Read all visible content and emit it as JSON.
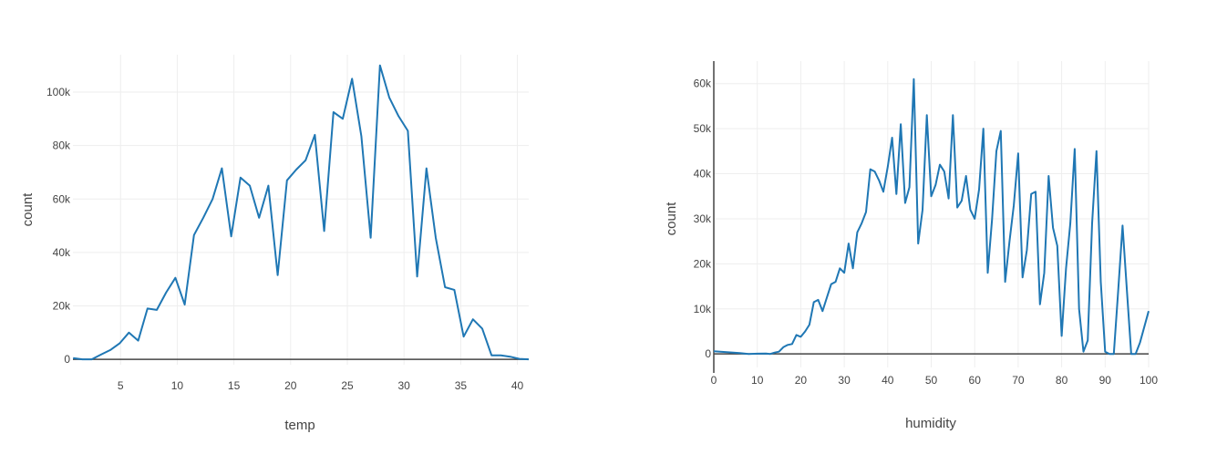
{
  "colors": {
    "line": "#1f77b4",
    "grid": "#eeeeee",
    "zeroline": "#444444",
    "text": "#444444"
  },
  "chart_data": [
    {
      "type": "line",
      "xlabel": "temp",
      "ylabel": "count",
      "xlim": [
        0.8,
        41
      ],
      "ylim": [
        -2000,
        114000
      ],
      "grid": true,
      "x_ticks": [
        5,
        10,
        15,
        20,
        25,
        30,
        35,
        40
      ],
      "x_tick_labels": [
        "5",
        "10",
        "15",
        "20",
        "25",
        "30",
        "35",
        "40"
      ],
      "y_ticks": [
        0,
        20000,
        40000,
        60000,
        80000,
        100000
      ],
      "y_tick_labels": [
        "0",
        "20k",
        "40k",
        "60k",
        "80k",
        "100k"
      ],
      "series": [
        {
          "x": [
            0.82,
            1.64,
            2.46,
            3.28,
            4.1,
            4.92,
            5.74,
            6.56,
            7.38,
            8.2,
            9.02,
            9.84,
            10.66,
            11.48,
            12.3,
            13.12,
            13.94,
            14.76,
            15.58,
            16.4,
            17.22,
            18.04,
            18.86,
            19.68,
            20.5,
            21.32,
            22.14,
            22.96,
            23.78,
            24.6,
            25.42,
            26.24,
            27.06,
            27.88,
            28.7,
            29.52,
            30.34,
            31.16,
            31.98,
            32.8,
            33.62,
            34.44,
            35.26,
            36.08,
            36.9,
            37.72,
            38.54,
            39.36,
            40.18,
            41.0
          ],
          "y": [
            500,
            0,
            0,
            1800,
            3500,
            6000,
            10000,
            7000,
            19000,
            18500,
            25000,
            30500,
            20500,
            46500,
            53000,
            60000,
            71500,
            46000,
            68000,
            65000,
            53000,
            65000,
            31500,
            67000,
            71000,
            74500,
            84000,
            48000,
            92500,
            90000,
            105000,
            83500,
            45500,
            110000,
            98000,
            91000,
            85500,
            31000,
            71500,
            45500,
            27000,
            26000,
            8500,
            15000,
            11500,
            1500,
            1500,
            1000,
            200,
            0
          ]
        }
      ]
    },
    {
      "type": "line",
      "xlabel": "humidity",
      "ylabel": "count",
      "xlim": [
        0,
        100
      ],
      "ylim": [
        -3000,
        65000
      ],
      "grid": true,
      "x_ticks": [
        0,
        10,
        20,
        30,
        40,
        50,
        60,
        70,
        80,
        90,
        100
      ],
      "x_tick_labels": [
        "0",
        "10",
        "20",
        "30",
        "40",
        "50",
        "60",
        "70",
        "80",
        "90",
        "100"
      ],
      "y_ticks": [
        0,
        10000,
        20000,
        30000,
        40000,
        50000,
        60000
      ],
      "y_tick_labels": [
        "0",
        "10k",
        "20k",
        "30k",
        "40k",
        "50k",
        "60k"
      ],
      "series": [
        {
          "x": [
            0,
            6,
            8,
            10,
            12,
            13,
            14,
            15,
            16,
            17,
            18,
            19,
            20,
            21,
            22,
            23,
            24,
            25,
            26,
            27,
            28,
            29,
            30,
            31,
            32,
            33,
            34,
            35,
            36,
            37,
            38,
            39,
            40,
            41,
            42,
            43,
            44,
            45,
            46,
            47,
            48,
            49,
            50,
            51,
            52,
            53,
            54,
            55,
            56,
            57,
            58,
            59,
            60,
            61,
            62,
            63,
            64,
            65,
            66,
            67,
            68,
            69,
            70,
            71,
            72,
            73,
            74,
            75,
            76,
            77,
            78,
            79,
            80,
            81,
            82,
            83,
            84,
            85,
            86,
            87,
            88,
            89,
            90,
            91,
            92,
            93,
            94,
            95,
            96,
            97,
            98,
            100
          ],
          "y": [
            600,
            200,
            0,
            50,
            100,
            0,
            300,
            500,
            1500,
            2000,
            2200,
            4200,
            3800,
            5000,
            6500,
            11500,
            12000,
            9500,
            12500,
            15500,
            16000,
            19000,
            18000,
            24500,
            19000,
            27000,
            29000,
            31500,
            41000,
            40500,
            38500,
            36000,
            41500,
            48000,
            35500,
            51000,
            33500,
            37000,
            61000,
            24500,
            32000,
            53000,
            35000,
            37500,
            42000,
            40500,
            34500,
            53000,
            32500,
            34000,
            39500,
            32000,
            30000,
            36500,
            50000,
            18000,
            30000,
            45000,
            49500,
            16000,
            25000,
            33000,
            44500,
            17000,
            23000,
            35500,
            36000,
            11000,
            18000,
            39500,
            28000,
            24000,
            4000,
            19000,
            29000,
            45500,
            10000,
            500,
            3000,
            29000,
            45000,
            16000,
            500,
            0,
            0,
            14000,
            28500,
            14000,
            0,
            0,
            2500,
            9500
          ]
        }
      ]
    }
  ]
}
